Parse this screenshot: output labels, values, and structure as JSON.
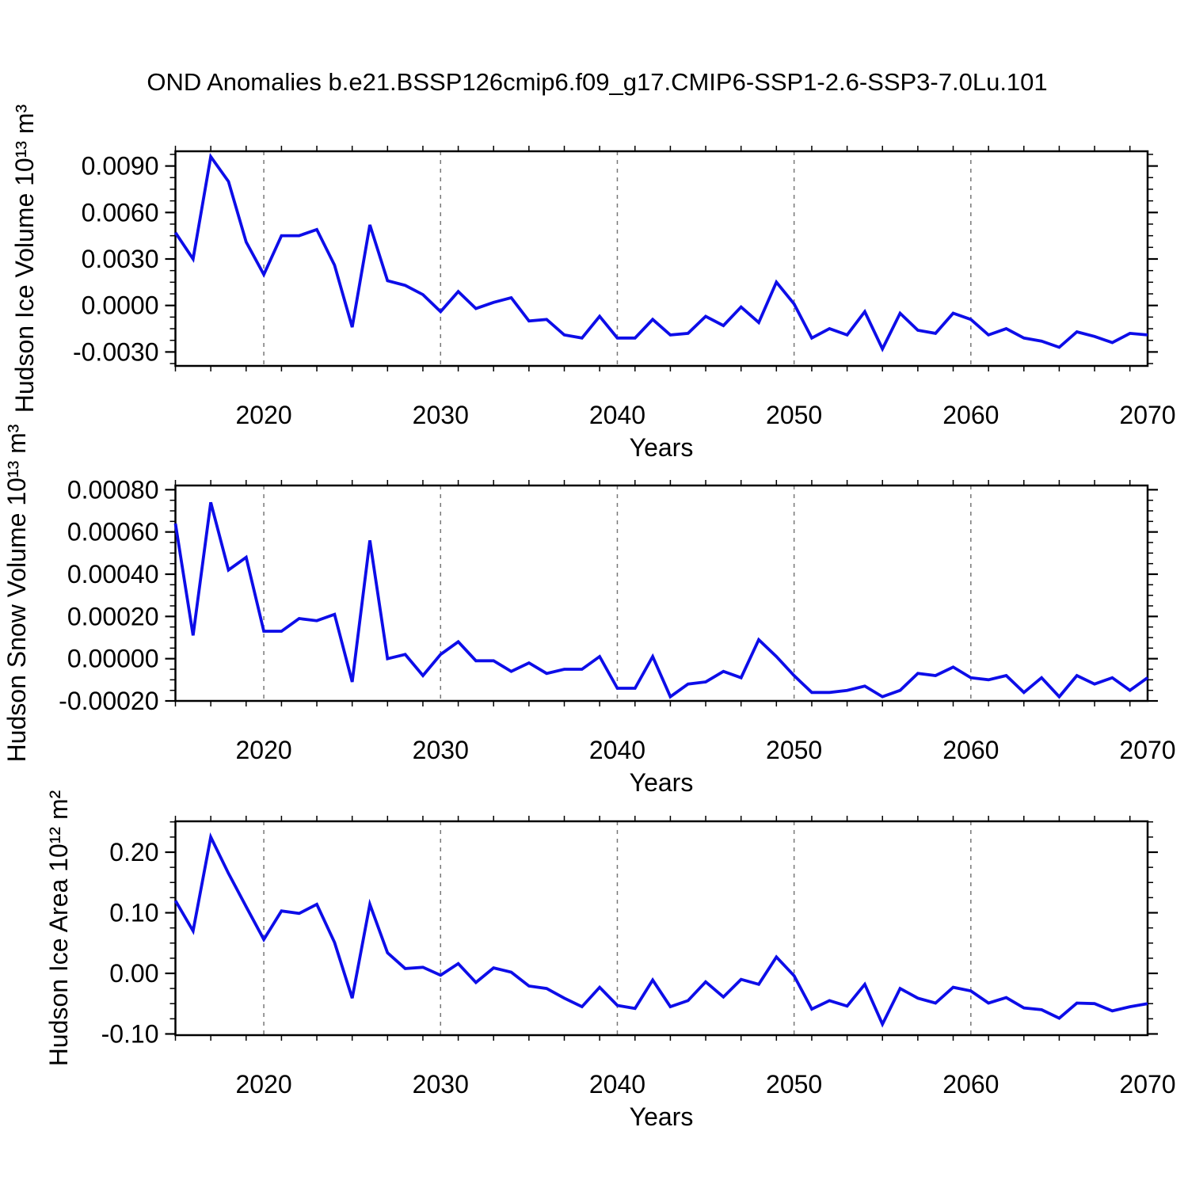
{
  "title": "OND Anomalies b.e21.BSSP126cmip6.f09_g17.CMIP6-SSP1-2.6-SSP3-7.0Lu.101",
  "style": {
    "line_color": "#0d0de8",
    "grid_color": "#787878",
    "axis_color": "#000000",
    "background": "#ffffff",
    "text_color": "#000000"
  },
  "years": [
    2015,
    2016,
    2017,
    2018,
    2019,
    2020,
    2021,
    2022,
    2023,
    2024,
    2025,
    2026,
    2027,
    2028,
    2029,
    2030,
    2031,
    2032,
    2033,
    2034,
    2035,
    2036,
    2037,
    2038,
    2039,
    2040,
    2041,
    2042,
    2043,
    2044,
    2045,
    2046,
    2047,
    2048,
    2049,
    2050,
    2051,
    2052,
    2053,
    2054,
    2055,
    2056,
    2057,
    2058,
    2059,
    2060,
    2061,
    2062,
    2063,
    2064,
    2065,
    2066,
    2067,
    2068,
    2069,
    2070
  ],
  "chart_data": [
    {
      "type": "line",
      "name": "ice_volume",
      "ylabel": "Hudson Ice Volume 10¹³ m³",
      "xlabel": "Years",
      "xlim": [
        2015,
        2070
      ],
      "ylim": [
        -0.0039,
        0.00995
      ],
      "xticks": [
        2020,
        2030,
        2040,
        2050,
        2060,
        2070
      ],
      "xtick_minor_step": 2,
      "yticks": [
        {
          "label": "-0.0030",
          "value": -0.003
        },
        {
          "label": "0.0000",
          "value": 0.0
        },
        {
          "label": "0.0030",
          "value": 0.003
        },
        {
          "label": "0.0060",
          "value": 0.006
        },
        {
          "label": "0.0090",
          "value": 0.009
        }
      ],
      "ytick_minor_step": 0.00075,
      "grid": "vertical-dashed",
      "values": [
        0.0047,
        0.003,
        0.0096,
        0.008,
        0.0041,
        0.002,
        0.0045,
        0.0045,
        0.0049,
        0.0026,
        -0.0014,
        0.0052,
        0.0016,
        0.0013,
        0.0007,
        -0.0004,
        0.0009,
        -0.0002,
        0.0002,
        0.0005,
        -0.001,
        -0.0009,
        -0.0019,
        -0.0021,
        -0.0007,
        -0.0021,
        -0.0021,
        -0.0009,
        -0.0019,
        -0.0018,
        -0.0007,
        -0.0013,
        -0.0001,
        -0.0011,
        0.0015,
        0.0001,
        -0.0021,
        -0.0015,
        -0.0019,
        -0.0004,
        -0.0028,
        -0.0005,
        -0.0016,
        -0.0018,
        -0.0005,
        -0.0009,
        -0.0019,
        -0.0015,
        -0.0021,
        -0.0023,
        -0.0027,
        -0.0017,
        -0.002,
        -0.0024,
        -0.0018,
        -0.0019
      ]
    },
    {
      "type": "line",
      "name": "snow_volume",
      "ylabel": "Hudson Snow Volume 10¹³ m³",
      "xlabel": "Years",
      "xlim": [
        2015,
        2070
      ],
      "ylim": [
        -0.0002,
        0.00082
      ],
      "xticks": [
        2020,
        2030,
        2040,
        2050,
        2060,
        2070
      ],
      "xtick_minor_step": 2,
      "yticks": [
        {
          "label": "-0.00020",
          "value": -0.0002
        },
        {
          "label": "0.00000",
          "value": 0.0
        },
        {
          "label": "0.00020",
          "value": 0.0002
        },
        {
          "label": "0.00040",
          "value": 0.0004
        },
        {
          "label": "0.00060",
          "value": 0.0006
        },
        {
          "label": "0.00080",
          "value": 0.0008
        }
      ],
      "ytick_minor_step": 5e-05,
      "grid": "vertical-dashed",
      "values": [
        0.00064,
        0.00011,
        0.00074,
        0.00042,
        0.00048,
        0.00013,
        0.00013,
        0.00019,
        0.00018,
        0.00021,
        -0.00011,
        0.00056,
        0.0,
        2e-05,
        -8e-05,
        2e-05,
        8e-05,
        -1e-05,
        -1e-05,
        -6e-05,
        -2e-05,
        -7e-05,
        -5e-05,
        -5e-05,
        1e-05,
        -0.00014,
        -0.00014,
        1e-05,
        -0.00018,
        -0.00012,
        -0.00011,
        -6e-05,
        -9e-05,
        9e-05,
        1e-05,
        -8e-05,
        -0.00016,
        -0.00016,
        -0.00015,
        -0.00013,
        -0.00018,
        -0.00015,
        -7e-05,
        -8e-05,
        -4e-05,
        -9e-05,
        -0.0001,
        -8e-05,
        -0.00016,
        -9e-05,
        -0.00018,
        -8e-05,
        -0.00012,
        -9e-05,
        -0.00015,
        -9e-05
      ]
    },
    {
      "type": "line",
      "name": "ice_area",
      "ylabel": "Hudson Ice Area 10¹² m²",
      "xlabel": "Years",
      "xlim": [
        2015,
        2070
      ],
      "ylim": [
        -0.102,
        0.251
      ],
      "xticks": [
        2020,
        2030,
        2040,
        2050,
        2060,
        2070
      ],
      "xtick_minor_step": 2,
      "yticks": [
        {
          "label": "-0.10",
          "value": -0.1
        },
        {
          "label": "0.00",
          "value": 0.0
        },
        {
          "label": "0.10",
          "value": 0.1
        },
        {
          "label": "0.20",
          "value": 0.2
        }
      ],
      "ytick_minor_step": 0.025,
      "grid": "vertical-dashed",
      "values": [
        0.12,
        0.07,
        0.225,
        0.165,
        0.11,
        0.056,
        0.103,
        0.099,
        0.114,
        0.051,
        -0.041,
        0.114,
        0.034,
        0.008,
        0.01,
        -0.003,
        0.016,
        -0.015,
        0.009,
        0.002,
        -0.021,
        -0.025,
        -0.041,
        -0.055,
        -0.023,
        -0.053,
        -0.058,
        -0.011,
        -0.055,
        -0.045,
        -0.014,
        -0.039,
        -0.01,
        -0.018,
        0.027,
        -0.004,
        -0.059,
        -0.045,
        -0.054,
        -0.018,
        -0.084,
        -0.025,
        -0.041,
        -0.049,
        -0.023,
        -0.029,
        -0.049,
        -0.04,
        -0.057,
        -0.06,
        -0.074,
        -0.049,
        -0.05,
        -0.062,
        -0.055,
        -0.05
      ]
    }
  ]
}
